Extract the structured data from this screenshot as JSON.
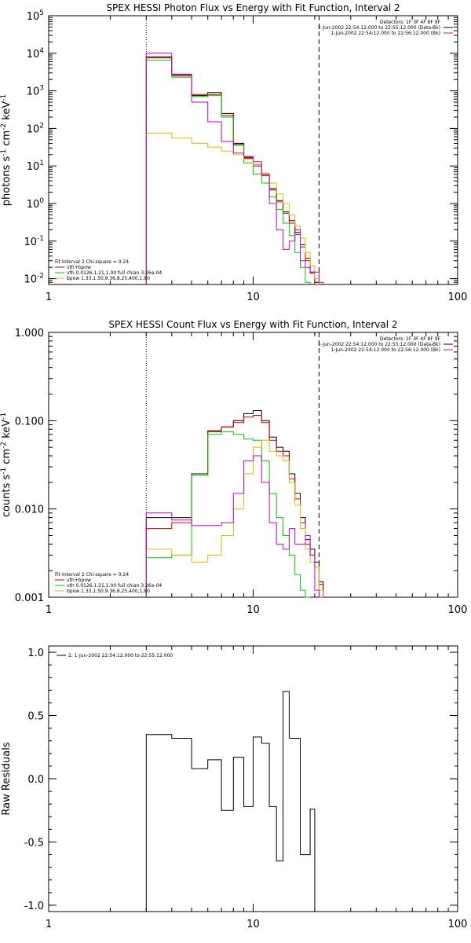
{
  "chart_data": [
    {
      "type": "line",
      "title": "SPEX HESSI Photon Flux vs Energy with Fit Function, Interval 2",
      "ylabel_parts": [
        "photons s",
        "-1",
        " cm",
        "-2",
        " keV",
        "-1"
      ],
      "xscale": "log",
      "yscale": "log",
      "xlim": [
        1,
        100
      ],
      "ylim": [
        0.007,
        100000
      ],
      "xticks": [
        1,
        10,
        100
      ],
      "xtick_labels": [
        "1",
        "10",
        "100"
      ],
      "yticks": [
        0.01,
        0.1,
        1,
        10,
        100,
        1000,
        10000,
        100000
      ],
      "ytick_labels": [
        {
          "base": "10",
          "exp": "-2"
        },
        {
          "base": "10",
          "exp": "-1"
        },
        {
          "base": "10",
          "exp": "0"
        },
        {
          "base": "10",
          "exp": "1"
        },
        {
          "base": "10",
          "exp": "2"
        },
        {
          "base": "10",
          "exp": "3"
        },
        {
          "base": "10",
          "exp": "4"
        },
        {
          "base": "10",
          "exp": "5"
        }
      ],
      "vlines": [
        {
          "x": 3.0,
          "style": "dotted"
        },
        {
          "x": 21.0,
          "style": "dashed"
        }
      ],
      "legend_top_right": {
        "lines": [
          "Detectors: 1F 3F 4F 8F 9F",
          "1-Jun-2002 22:54:12.000 to 22:55:12.000 (Data-Bk)",
          "1-Jun-2002 22:54:12.000 to 22:56:12.000 (Bk)"
        ],
        "colors": [
          "",
          "#000000",
          "#cc00cc"
        ]
      },
      "legend_bottom_left": {
        "lines": [
          "Fit Interval 2   Chi-square = 0.24",
          "vth+bpow",
          "vth 0.0126,1.21,1.00  full chian 3.26e-04",
          "bpow 1.33,1.50,9.36,8.25,400,1.80"
        ],
        "colors": [
          "",
          "#cc0000",
          "#00cc00",
          "#ddbb00"
        ]
      },
      "bin_edges": [
        3.0,
        4.0,
        5.0,
        6.0,
        7.0,
        8.0,
        9.0,
        10.0,
        11.0,
        12.0,
        13.0,
        14.0,
        15.0,
        16.0,
        17.0,
        18.0,
        19.0,
        20.0,
        21.0,
        22.0,
        24.0
      ],
      "series": [
        {
          "color": "#000000",
          "values": [
            8000,
            2700,
            750,
            900,
            250,
            40,
            17,
            11,
            6.0,
            2.5,
            1.2,
            0.6,
            0.35,
            0.17,
            0.08,
            0.035,
            0.015,
            0.008,
            null,
            null
          ]
        },
        {
          "color": "#cc0000",
          "values": [
            7500,
            2500,
            800,
            800,
            220,
            38,
            16,
            10,
            5.5,
            2.3,
            1.1,
            0.55,
            0.3,
            0.15,
            0.07,
            0.03,
            0.014,
            0.007,
            null,
            null
          ]
        },
        {
          "color": "#00cc00",
          "values": [
            6500,
            2300,
            700,
            750,
            200,
            35,
            12,
            6,
            3.5,
            1.5,
            0.7,
            0.3,
            0.14,
            0.05,
            0.02,
            0.008,
            null,
            null,
            null,
            null
          ]
        },
        {
          "color": "#ddbb00",
          "values": [
            75,
            55,
            40,
            32,
            25,
            20,
            15,
            11,
            6.5,
            3.5,
            1.8,
            1.0,
            0.5,
            0.25,
            0.12,
            0.05,
            0.022,
            0.01,
            null,
            null
          ]
        },
        {
          "color": "#cc00cc",
          "values": [
            10000,
            2800,
            500,
            150,
            45,
            22,
            18,
            13,
            6.0,
            1.0,
            0.2,
            0.06,
            0.1,
            0.2,
            0.03,
            0.02,
            0.015,
            0.015,
            0.008,
            null
          ]
        }
      ]
    },
    {
      "type": "line",
      "title": "SPEX HESSI Count Flux vs Energy with Fit Function, Interval 2",
      "ylabel_parts": [
        "counts s",
        "-1",
        " cm",
        "-2",
        " keV",
        "-1"
      ],
      "xscale": "log",
      "yscale": "log",
      "xlim": [
        1,
        100
      ],
      "ylim": [
        0.001,
        1.0
      ],
      "xticks": [
        1,
        10,
        100
      ],
      "xtick_labels": [
        "1",
        "10",
        "100"
      ],
      "yticks": [
        0.001,
        0.01,
        0.1,
        1.0
      ],
      "ytick_labels": [
        {
          "base": "0.001",
          "exp": ""
        },
        {
          "base": "0.010",
          "exp": ""
        },
        {
          "base": "0.100",
          "exp": ""
        },
        {
          "base": "1.000",
          "exp": ""
        }
      ],
      "vlines": [
        {
          "x": 3.0,
          "style": "dotted"
        },
        {
          "x": 21.0,
          "style": "dashed"
        }
      ],
      "legend_top_right": {
        "lines": [
          "Detectors: 1F 3F 4F 8F 9F",
          "1-Jun-2002 22:54:12.000 to 22:55:12.000 (Data-Bk)",
          "1-Jun-2002 22:54:12.000 to 22:56:12.000 (Bk)"
        ],
        "colors": [
          "",
          "#000000",
          "#cc00cc"
        ]
      },
      "legend_bottom_left": {
        "lines": [
          "Fit Interval 2   Chi-square = 0.24",
          "vth+bpow",
          "vth 0.0126,1.21,1.00  full chian 3.26e-04",
          "bpow 1.33,1.50,9.36,8.25,400,1.80"
        ],
        "colors": [
          "",
          "#cc0000",
          "#00cc00",
          "#ddbb00"
        ]
      },
      "bin_edges": [
        3.0,
        4.0,
        5.0,
        6.0,
        7.0,
        8.0,
        9.0,
        10.0,
        11.0,
        12.0,
        13.0,
        14.0,
        15.0,
        16.0,
        17.0,
        18.0,
        19.0,
        20.0,
        21.0,
        22.0
      ],
      "series": [
        {
          "color": "#000000",
          "values": [
            0.008,
            0.008,
            0.025,
            0.077,
            0.085,
            0.1,
            0.12,
            0.13,
            0.1,
            0.065,
            0.05,
            0.045,
            0.025,
            0.015,
            0.008,
            0.0045,
            0.0035,
            0.0025,
            0.0015
          ]
        },
        {
          "color": "#cc0000",
          "values": [
            0.006,
            0.007,
            0.024,
            0.075,
            0.085,
            0.095,
            0.11,
            0.115,
            0.095,
            0.06,
            0.045,
            0.04,
            0.022,
            0.013,
            0.007,
            0.004,
            0.003,
            0.0022,
            0.0014
          ]
        },
        {
          "color": "#00cc00",
          "values": [
            0.0028,
            0.003,
            0.024,
            0.07,
            0.075,
            0.07,
            0.062,
            0.06,
            0.035,
            0.015,
            0.008,
            0.005,
            0.003,
            0.0018,
            0.0012,
            0.0009,
            null,
            null,
            null
          ]
        },
        {
          "color": "#ddbb00",
          "values": [
            0.0035,
            0.003,
            0.0025,
            0.003,
            0.005,
            0.01,
            0.025,
            0.05,
            0.06,
            0.045,
            0.04,
            0.035,
            0.02,
            0.011,
            0.006,
            0.0035,
            0.0025,
            0.0022,
            0.0012
          ]
        },
        {
          "color": "#cc00cc",
          "values": [
            0.009,
            0.0075,
            0.0065,
            0.0065,
            0.007,
            0.015,
            0.035,
            0.04,
            0.02,
            0.007,
            0.004,
            0.0035,
            0.006,
            0.004,
            0.004,
            0.005,
            0.003,
            0.0012,
            0.0008
          ]
        }
      ]
    },
    {
      "type": "line",
      "title": "",
      "ylabel_parts": [
        "Raw Residuals"
      ],
      "xscale": "log",
      "yscale": "linear",
      "xlim": [
        1,
        100
      ],
      "ylim": [
        -1.05,
        1.05
      ],
      "xticks": [
        1,
        10,
        100
      ],
      "xtick_labels": [
        "1",
        "10",
        "100"
      ],
      "yticks": [
        -1.0,
        -0.5,
        0.0,
        0.5,
        1.0
      ],
      "ytick_labels": [
        {
          "base": "-1.0",
          "exp": ""
        },
        {
          "base": "-0.5",
          "exp": ""
        },
        {
          "base": "0.0",
          "exp": ""
        },
        {
          "base": "0.5",
          "exp": ""
        },
        {
          "base": "1.0",
          "exp": ""
        }
      ],
      "vlines": [],
      "legend_top_left": {
        "lines": [
          "2.  1-Jun-2002 22:54:12.000 to 22:55:12.000"
        ],
        "colors": [
          "#000000"
        ]
      },
      "bin_edges": [
        3.0,
        4.0,
        5.0,
        6.0,
        7.0,
        7.5,
        8.0,
        8.5,
        9.0,
        10.0,
        11.0,
        12.0,
        13.0,
        14.0,
        15.0,
        16.0,
        17.0,
        18.0,
        19.0,
        20.0
      ],
      "series": [
        {
          "color": "#000000",
          "values": [
            0.35,
            0.32,
            0.08,
            0.15,
            -0.25,
            -0.25,
            0.17,
            0.17,
            -0.22,
            0.33,
            0.28,
            -0.22,
            -0.65,
            0.69,
            0.32,
            0.32,
            -0.6,
            -0.6,
            -0.24
          ]
        }
      ]
    }
  ]
}
